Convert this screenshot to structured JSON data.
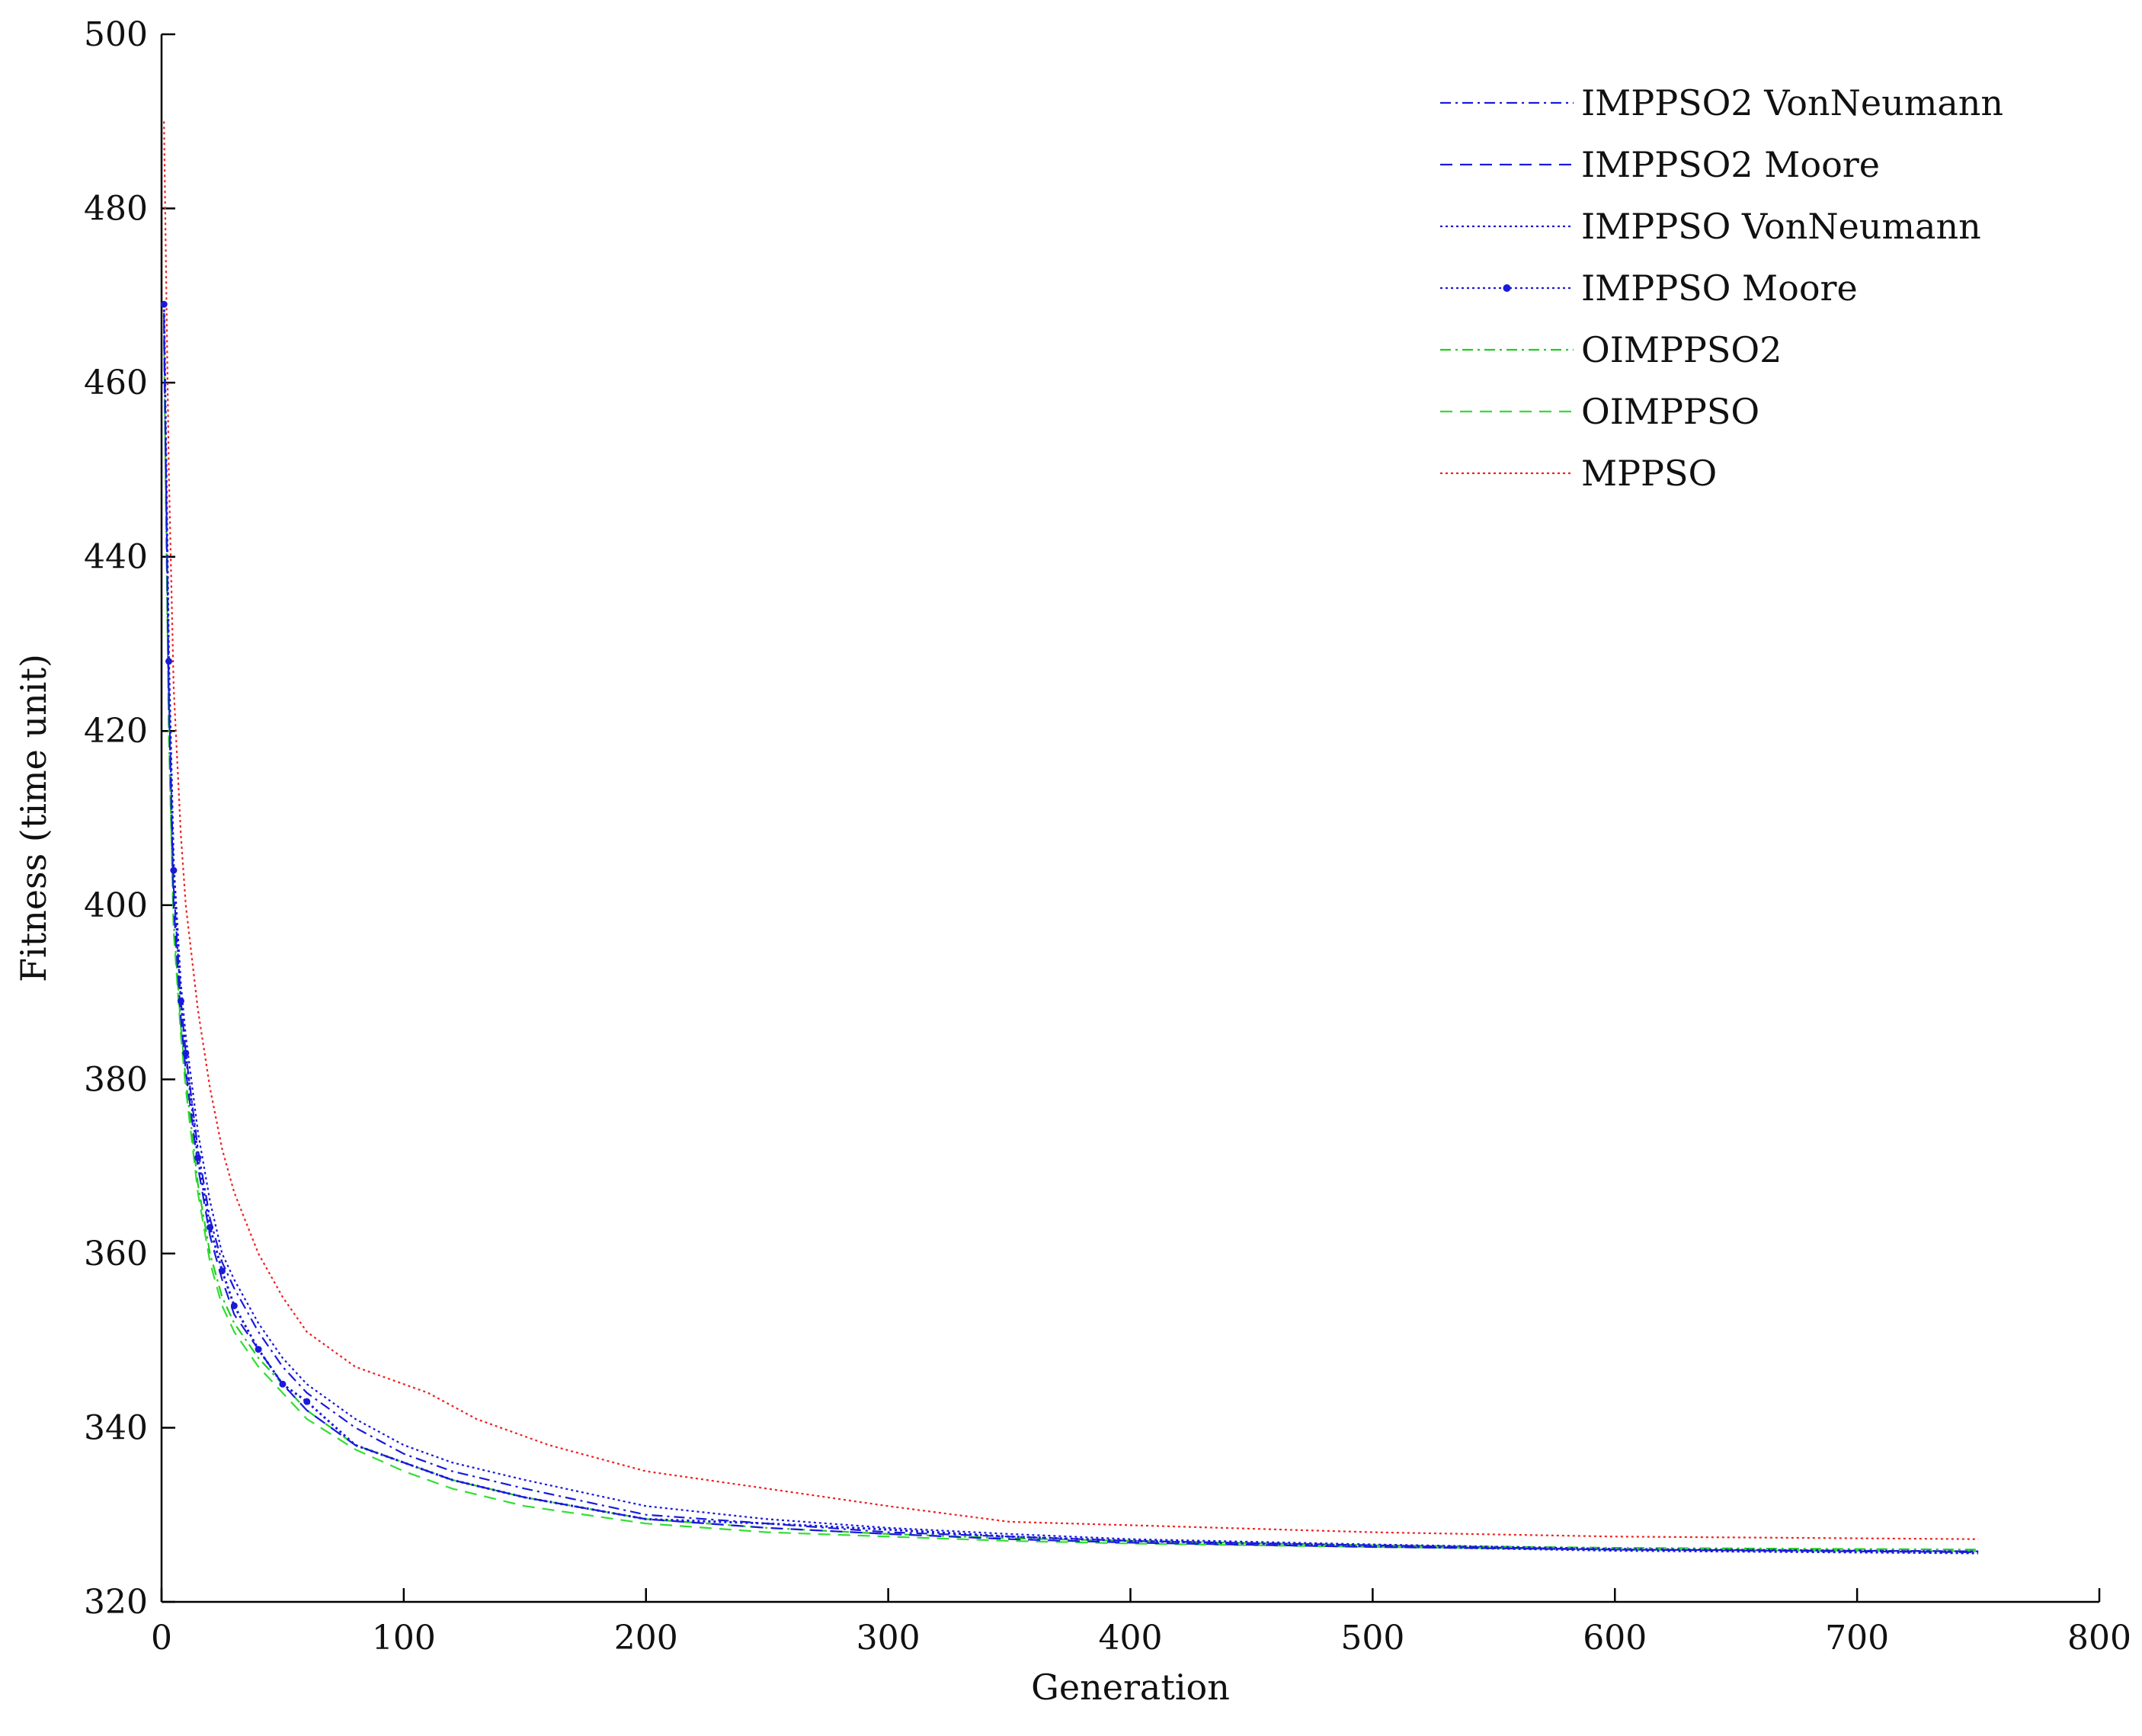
{
  "chart_data": {
    "type": "line",
    "title": "",
    "xlabel": "Generation",
    "ylabel": "Fitness (time unit)",
    "xlim": [
      0,
      800
    ],
    "ylim": [
      320,
      500
    ],
    "xticks": [
      0,
      100,
      200,
      300,
      400,
      500,
      600,
      700,
      800
    ],
    "yticks": [
      320,
      340,
      360,
      380,
      400,
      420,
      440,
      460,
      480,
      500
    ],
    "grid": false,
    "legend_position": "top-right",
    "series": [
      {
        "name": "IMPPSO2 VonNeumann",
        "color": "#1a1adb",
        "dash": "dash-dot",
        "markers": false,
        "x": [
          1,
          3,
          5,
          8,
          10,
          15,
          20,
          25,
          30,
          40,
          50,
          60,
          80,
          100,
          120,
          150,
          200,
          250,
          300,
          350,
          400,
          500,
          600,
          750
        ],
        "y": [
          468,
          425,
          402,
          389,
          383,
          372,
          364,
          359,
          356,
          351,
          347,
          344,
          340,
          337,
          335,
          333,
          330,
          329,
          328,
          327.5,
          327,
          326.5,
          326,
          325.8
        ]
      },
      {
        "name": "IMPPSO2 Moore",
        "color": "#1a1adb",
        "dash": "dashed",
        "markers": false,
        "x": [
          1,
          3,
          5,
          8,
          10,
          15,
          20,
          25,
          30,
          40,
          50,
          60,
          80,
          100,
          120,
          150,
          200,
          250,
          300,
          350,
          400,
          500,
          600,
          750
        ],
        "y": [
          467,
          424,
          400,
          387,
          381,
          370,
          362,
          357,
          353,
          349,
          345,
          342,
          338,
          336,
          334,
          332,
          329.5,
          328.5,
          327.8,
          327.2,
          326.8,
          326.3,
          326,
          325.7
        ]
      },
      {
        "name": "IMPPSO VonNeumann",
        "color": "#1a1adb",
        "dash": "dotted",
        "markers": false,
        "x": [
          1,
          3,
          5,
          8,
          10,
          15,
          20,
          25,
          30,
          40,
          50,
          60,
          80,
          100,
          120,
          150,
          200,
          250,
          300,
          350,
          400,
          500,
          600,
          750
        ],
        "y": [
          469,
          428,
          405,
          391,
          385,
          374,
          366,
          360,
          357,
          352,
          348,
          345,
          341,
          338,
          336,
          334,
          331,
          329.5,
          328.5,
          327.8,
          327.2,
          326.6,
          326.1,
          325.8
        ]
      },
      {
        "name": "IMPPSO Moore",
        "color": "#1a1adb",
        "dash": "dotted",
        "markers": true,
        "x": [
          1,
          3,
          5,
          8,
          10,
          15,
          20,
          25,
          30,
          40,
          50,
          60,
          80,
          100,
          120,
          150,
          200,
          250,
          300,
          350,
          400,
          500,
          600,
          750
        ],
        "y": [
          469,
          428,
          404,
          389,
          383,
          371,
          363,
          358,
          354,
          349,
          345,
          343,
          338,
          336,
          334,
          332,
          329.5,
          329,
          328.3,
          327.5,
          327,
          326.4,
          325.9,
          325.6
        ]
      },
      {
        "name": "OIMPPSO2",
        "color": "#22cc22",
        "dash": "dash-dot",
        "markers": false,
        "x": [
          1,
          3,
          5,
          8,
          10,
          15,
          20,
          25,
          30,
          40,
          50,
          60,
          80,
          100,
          120,
          150,
          200,
          250,
          300,
          350,
          400,
          500,
          600,
          750
        ],
        "y": [
          465,
          420,
          398,
          386,
          380,
          368,
          360,
          355,
          352,
          348,
          345,
          342,
          338,
          336,
          334,
          332,
          329.5,
          328.5,
          327.8,
          327.3,
          327,
          326.5,
          326.2,
          326
        ]
      },
      {
        "name": "OIMPPSO",
        "color": "#33dd33",
        "dash": "dashed",
        "markers": false,
        "x": [
          1,
          3,
          5,
          8,
          10,
          15,
          20,
          25,
          30,
          40,
          50,
          60,
          80,
          100,
          120,
          150,
          200,
          250,
          300,
          350,
          400,
          500,
          600,
          750
        ],
        "y": [
          465,
          420,
          397,
          385,
          379,
          367,
          359,
          354,
          351,
          347,
          344,
          341,
          337.5,
          335,
          333,
          331,
          329,
          328,
          327.5,
          327,
          326.7,
          326.3,
          326,
          325.8
        ]
      },
      {
        "name": "MPPSO",
        "color": "#ee2222",
        "dash": "dotted",
        "markers": false,
        "x": [
          1,
          3,
          5,
          8,
          10,
          15,
          20,
          25,
          30,
          40,
          50,
          60,
          70,
          80,
          100,
          110,
          130,
          160,
          200,
          250,
          300,
          350,
          400,
          500,
          600,
          750
        ],
        "y": [
          490,
          450,
          425,
          408,
          400,
          388,
          379,
          372,
          367,
          360,
          355,
          351,
          349,
          347,
          345,
          344,
          341,
          338,
          335,
          333,
          331,
          329.2,
          328.8,
          328,
          327.5,
          327.2
        ]
      }
    ]
  }
}
